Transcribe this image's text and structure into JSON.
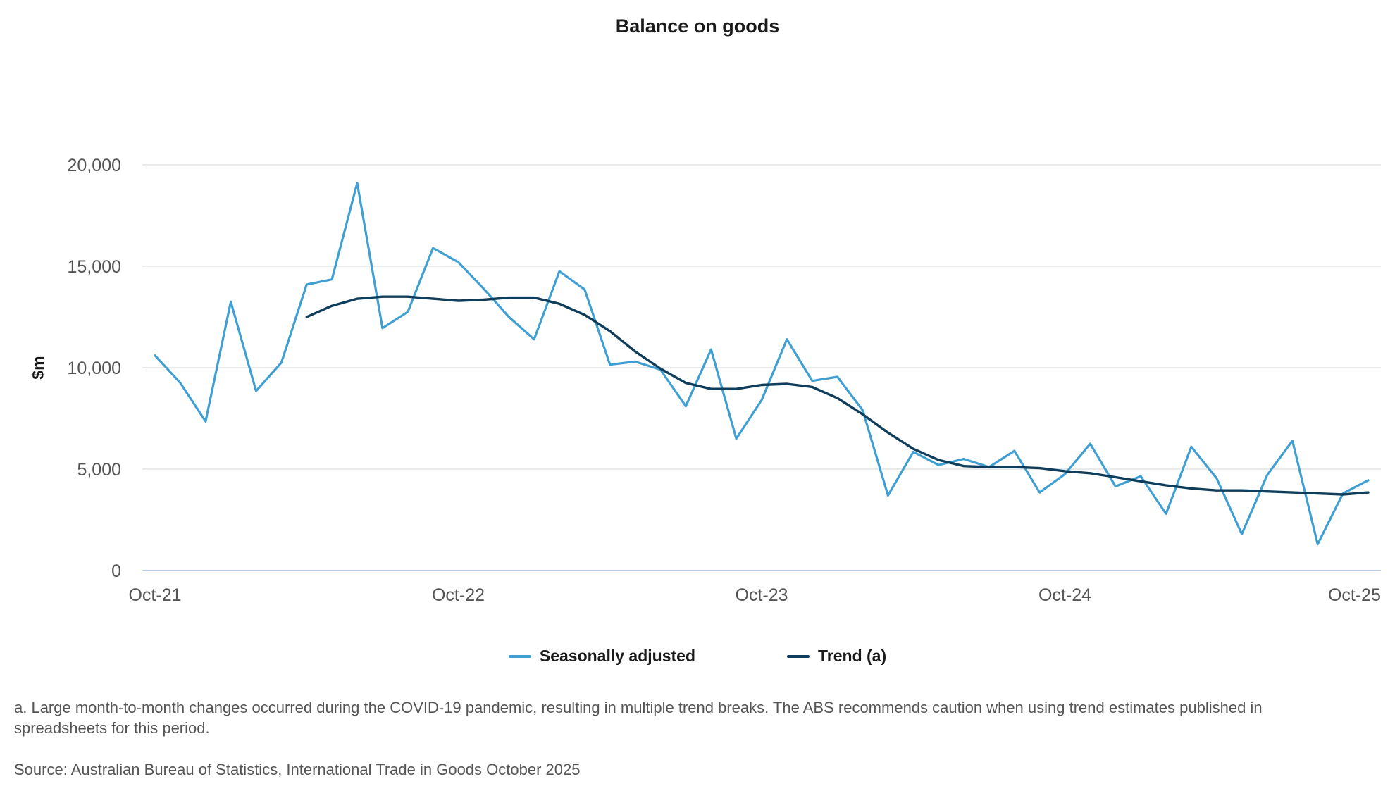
{
  "chart_data": {
    "type": "line",
    "title": "Balance on goods",
    "ylabel": "$m",
    "xlabel": "",
    "ylim": [
      0,
      20000
    ],
    "yticks": [
      0,
      5000,
      10000,
      15000,
      20000
    ],
    "ytick_labels": [
      "0",
      "5,000",
      "10,000",
      "15,000",
      "20,000"
    ],
    "x_start": "Oct-21",
    "x": [
      "Oct-21",
      "Nov-21",
      "Dec-21",
      "Jan-22",
      "Feb-22",
      "Mar-22",
      "Apr-22",
      "May-22",
      "Jun-22",
      "Jul-22",
      "Aug-22",
      "Sep-22",
      "Oct-22",
      "Nov-22",
      "Dec-22",
      "Jan-23",
      "Feb-23",
      "Mar-23",
      "Apr-23",
      "May-23",
      "Jun-23",
      "Jul-23",
      "Aug-23",
      "Sep-23",
      "Oct-23",
      "Nov-23",
      "Dec-23",
      "Jan-24",
      "Feb-24",
      "Mar-24",
      "Apr-24",
      "May-24",
      "Jun-24",
      "Jul-24",
      "Aug-24",
      "Sep-24",
      "Oct-24",
      "Nov-24",
      "Dec-24",
      "Jan-25",
      "Feb-25",
      "Mar-25",
      "Apr-25",
      "May-25",
      "Jun-25",
      "Jul-25",
      "Aug-25",
      "Sep-25",
      "Oct-25"
    ],
    "xtick_labels": [
      "Oct-21",
      "Oct-22",
      "Oct-23",
      "Oct-24",
      "Oct-25"
    ],
    "grid": true,
    "legend_position": "bottom",
    "series": [
      {
        "name": "Seasonally adjusted",
        "color": "#3f9fd3",
        "values": [
          10600,
          9250,
          7350,
          13250,
          8850,
          10250,
          14100,
          14350,
          19100,
          11950,
          12750,
          15900,
          15200,
          13900,
          12500,
          11400,
          14750,
          13850,
          10150,
          10300,
          9900,
          8100,
          10900,
          6500,
          8400,
          11400,
          9350,
          9550,
          7900,
          3700,
          5850,
          5200,
          5500,
          5100,
          5900,
          3850,
          4750,
          6250,
          4150,
          4650,
          2800,
          6100,
          4550,
          1800,
          4700,
          6400,
          1300,
          3800,
          4450
        ]
      },
      {
        "name": "Trend (a)",
        "color": "#0f3d5c",
        "values": [
          null,
          null,
          null,
          null,
          null,
          null,
          12500,
          13050,
          13400,
          13500,
          13500,
          13400,
          13300,
          13350,
          13450,
          13450,
          13150,
          12600,
          11800,
          10800,
          9950,
          9250,
          8950,
          8950,
          9150,
          9200,
          9050,
          8500,
          7700,
          6800,
          6000,
          5450,
          5150,
          5100,
          5100,
          5050,
          4900,
          4800,
          4600,
          4400,
          4200,
          4050,
          3950,
          3950,
          3900,
          3850,
          3800,
          3750,
          3850
        ]
      }
    ]
  },
  "legend": {
    "seasonal_label": "Seasonally adjusted",
    "trend_label": "Trend (a)"
  },
  "footnote": "a. Large month-to-month changes occurred during the COVID-19 pandemic, resulting in multiple trend breaks. The ABS recommends caution when using trend estimates published in spreadsheets for this period.",
  "source": "Source: Australian Bureau of Statistics, International Trade in Goods October 2025"
}
